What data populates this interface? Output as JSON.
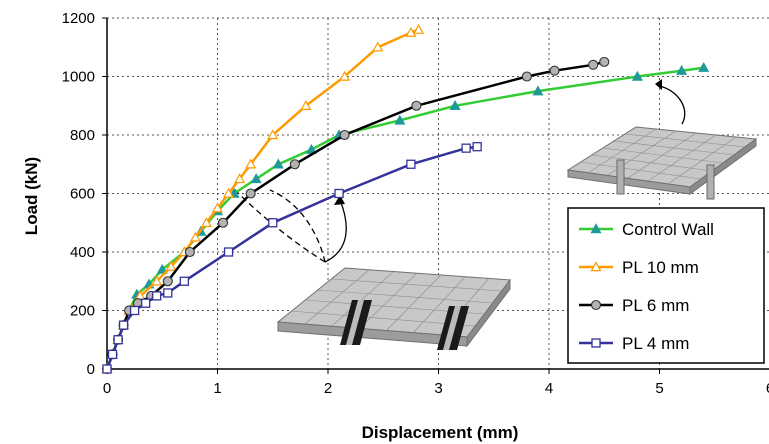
{
  "chart_data": {
    "type": "line",
    "xlabel": "Displacement (mm)",
    "ylabel": "Load (kN)",
    "xlim": [
      0,
      6
    ],
    "ylim": [
      0,
      1200
    ],
    "x_ticks": [
      "0",
      "1",
      "2",
      "3",
      "4",
      "5",
      "6"
    ],
    "y_ticks": [
      "0",
      "200",
      "400",
      "600",
      "800",
      "1000",
      "1200"
    ],
    "grid": true,
    "legend_position": "bottom-right",
    "series": [
      {
        "name": "Control Wall",
        "color": "#33cc33",
        "marker": "triangle-filled",
        "marker_fill": "#1f9a9a",
        "points": [
          [
            0,
            0
          ],
          [
            0.05,
            50
          ],
          [
            0.1,
            100
          ],
          [
            0.15,
            150
          ],
          [
            0.2,
            200
          ],
          [
            0.27,
            255
          ],
          [
            0.38,
            290
          ],
          [
            0.5,
            340
          ],
          [
            0.7,
            400
          ],
          [
            0.85,
            470
          ],
          [
            1.0,
            540
          ],
          [
            1.15,
            600
          ],
          [
            1.35,
            650
          ],
          [
            1.55,
            700
          ],
          [
            1.85,
            750
          ],
          [
            2.1,
            800
          ],
          [
            2.65,
            850
          ],
          [
            3.15,
            900
          ],
          [
            3.9,
            950
          ],
          [
            4.8,
            1000
          ],
          [
            5.2,
            1020
          ],
          [
            5.4,
            1030
          ]
        ]
      },
      {
        "name": "PL 10 mm",
        "color": "#ff9900",
        "marker": "triangle-open",
        "marker_fill": "#ffffff",
        "points": [
          [
            0,
            0
          ],
          [
            0.05,
            50
          ],
          [
            0.1,
            100
          ],
          [
            0.15,
            150
          ],
          [
            0.2,
            200
          ],
          [
            0.3,
            250
          ],
          [
            0.45,
            300
          ],
          [
            0.58,
            350
          ],
          [
            0.7,
            400
          ],
          [
            0.8,
            450
          ],
          [
            0.9,
            500
          ],
          [
            1.0,
            550
          ],
          [
            1.1,
            600
          ],
          [
            1.2,
            650
          ],
          [
            1.3,
            700
          ],
          [
            1.5,
            800
          ],
          [
            1.8,
            900
          ],
          [
            2.15,
            1000
          ],
          [
            2.45,
            1100
          ],
          [
            2.75,
            1150
          ],
          [
            2.82,
            1160
          ]
        ]
      },
      {
        "name": "PL 6 mm",
        "color": "#000000",
        "marker": "circle",
        "marker_fill": "#b3b3b3",
        "points": [
          [
            0,
            0
          ],
          [
            0.05,
            50
          ],
          [
            0.1,
            100
          ],
          [
            0.15,
            150
          ],
          [
            0.2,
            200
          ],
          [
            0.28,
            225
          ],
          [
            0.4,
            250
          ],
          [
            0.55,
            300
          ],
          [
            0.75,
            400
          ],
          [
            1.05,
            500
          ],
          [
            1.3,
            600
          ],
          [
            1.7,
            700
          ],
          [
            2.15,
            800
          ],
          [
            2.8,
            900
          ],
          [
            3.8,
            1000
          ],
          [
            4.05,
            1020
          ],
          [
            4.4,
            1040
          ],
          [
            4.5,
            1050
          ]
        ]
      },
      {
        "name": "PL 4 mm",
        "color": "#333399",
        "marker": "square-open",
        "marker_fill": "#ffffff",
        "points": [
          [
            0,
            0
          ],
          [
            0.05,
            50
          ],
          [
            0.1,
            100
          ],
          [
            0.15,
            150
          ],
          [
            0.25,
            200
          ],
          [
            0.35,
            225
          ],
          [
            0.45,
            250
          ],
          [
            0.55,
            260
          ],
          [
            0.7,
            300
          ],
          [
            1.1,
            400
          ],
          [
            1.5,
            500
          ],
          [
            2.1,
            600
          ],
          [
            2.75,
            700
          ],
          [
            3.25,
            755
          ],
          [
            3.35,
            760
          ]
        ]
      }
    ]
  }
}
